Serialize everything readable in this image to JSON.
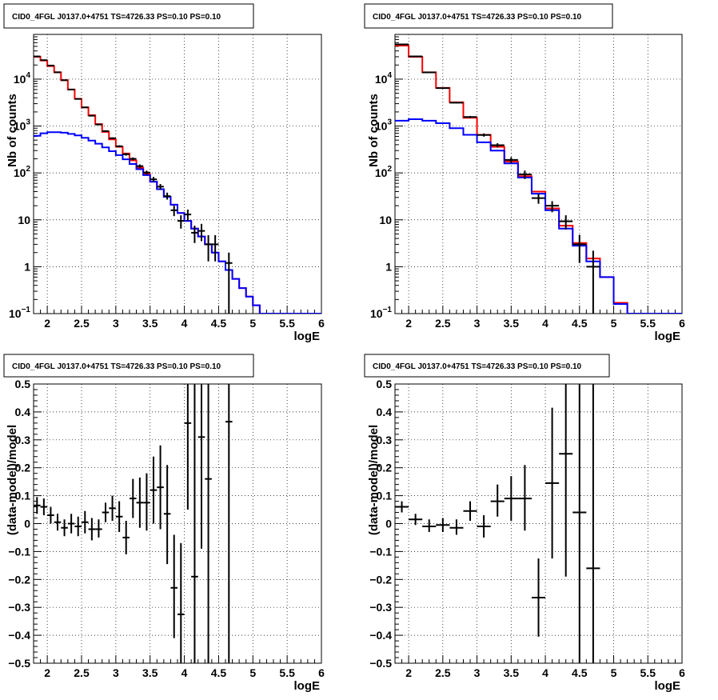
{
  "chart_data": [
    {
      "type": "line",
      "title": "CID0_4FGL J0137.0+4751 TS=4726.33 PS=0.10 PS=0.10",
      "xlabel": "logE",
      "ylabel": "Nb of counts",
      "xlim": [
        1.8,
        6.0
      ],
      "ylim": [
        0.1,
        90000
      ],
      "yscale": "log",
      "grid": true,
      "x_ticks": [
        "2",
        "2.5",
        "3",
        "3.5",
        "4",
        "4.5",
        "5",
        "5.5",
        "6"
      ],
      "y_ticks": [
        {
          "value": 0.1,
          "label": "10",
          "sup": "−1"
        },
        {
          "value": 1,
          "label": "1",
          "sup": ""
        },
        {
          "value": 10,
          "label": "10",
          "sup": ""
        },
        {
          "value": 100,
          "label": "10",
          "sup": "2"
        },
        {
          "value": 1000,
          "label": "10",
          "sup": "3"
        },
        {
          "value": 10000,
          "label": "10",
          "sup": "4"
        }
      ],
      "bin_width": 0.1,
      "series": [
        {
          "color": "#ff0000",
          "bins": [
            1.8,
            1.9,
            2.0,
            2.1,
            2.2,
            2.3,
            2.4,
            2.5,
            2.6,
            2.7,
            2.8,
            2.9,
            3.0,
            3.1,
            3.2,
            3.3,
            3.4,
            3.5,
            3.6,
            3.7,
            3.8,
            3.9,
            4.0,
            4.1,
            4.2,
            4.3,
            4.4,
            4.5,
            4.6,
            4.7,
            4.8,
            4.9,
            5.0,
            5.1,
            5.2,
            5.3,
            5.4,
            5.5,
            5.6,
            5.7,
            5.8,
            5.9
          ],
          "values": [
            30000,
            25000,
            19000,
            14000,
            9500,
            6000,
            3800,
            2500,
            1700,
            1100,
            750,
            520,
            360,
            260,
            185,
            130,
            95,
            65,
            45,
            31,
            21,
            14,
            9.5,
            6.5,
            4.4,
            3.0,
            2.0,
            1.3,
            0.85,
            0.55,
            0.35,
            0.23,
            0.15,
            0.1,
            0.1,
            0.1,
            0.1,
            0.1,
            0.1,
            0.1,
            0.1,
            0.1
          ]
        },
        {
          "color": "#0000ff",
          "bins": [
            1.8,
            1.9,
            2.0,
            2.1,
            2.2,
            2.3,
            2.4,
            2.5,
            2.6,
            2.7,
            2.8,
            2.9,
            3.0,
            3.1,
            3.2,
            3.3,
            3.4,
            3.5,
            3.6,
            3.7,
            3.8,
            3.9,
            4.0,
            4.1,
            4.2,
            4.3,
            4.4,
            4.5,
            4.6,
            4.7,
            4.8,
            4.9,
            5.0,
            5.1,
            5.2,
            5.3,
            5.4,
            5.5,
            5.6,
            5.7,
            5.8,
            5.9
          ],
          "values": [
            620,
            700,
            740,
            740,
            720,
            680,
            630,
            560,
            490,
            420,
            350,
            290,
            240,
            195,
            155,
            120,
            90,
            65,
            45,
            31,
            21,
            14,
            9.5,
            6.5,
            4.4,
            3.0,
            2.0,
            1.3,
            0.85,
            0.55,
            0.35,
            0.23,
            0.15,
            0.1,
            0.1,
            0.1,
            0.1,
            0.1,
            0.1,
            0.1,
            0.1,
            0.1
          ]
        }
      ],
      "points": [
        {
          "x": 1.85,
          "y": 30500,
          "lo": 30000,
          "hi": 31000
        },
        {
          "x": 1.95,
          "y": 25400,
          "lo": 25000,
          "hi": 25800
        },
        {
          "x": 2.05,
          "y": 19500,
          "lo": 19200,
          "hi": 19800
        },
        {
          "x": 2.15,
          "y": 14000,
          "lo": 13700,
          "hi": 14300
        },
        {
          "x": 2.25,
          "y": 9500,
          "lo": 9300,
          "hi": 9700
        },
        {
          "x": 2.35,
          "y": 6000,
          "lo": 5880,
          "hi": 6120
        },
        {
          "x": 2.45,
          "y": 3780,
          "lo": 3700,
          "hi": 3860
        },
        {
          "x": 2.55,
          "y": 2500,
          "lo": 2440,
          "hi": 2560
        },
        {
          "x": 2.65,
          "y": 1660,
          "lo": 1620,
          "hi": 1700
        },
        {
          "x": 2.75,
          "y": 1080,
          "lo": 1050,
          "hi": 1110
        },
        {
          "x": 2.85,
          "y": 780,
          "lo": 752,
          "hi": 808
        },
        {
          "x": 2.95,
          "y": 550,
          "lo": 527,
          "hi": 573
        },
        {
          "x": 3.05,
          "y": 370,
          "lo": 351,
          "hi": 389
        },
        {
          "x": 3.15,
          "y": 250,
          "lo": 234,
          "hi": 266
        },
        {
          "x": 3.25,
          "y": 200,
          "lo": 186,
          "hi": 214
        },
        {
          "x": 3.35,
          "y": 140,
          "lo": 128,
          "hi": 152
        },
        {
          "x": 3.45,
          "y": 102,
          "lo": 92,
          "hi": 112
        },
        {
          "x": 3.55,
          "y": 73,
          "lo": 65,
          "hi": 82
        },
        {
          "x": 3.65,
          "y": 51,
          "lo": 44,
          "hi": 58
        },
        {
          "x": 3.75,
          "y": 32,
          "lo": 27,
          "hi": 38
        },
        {
          "x": 3.85,
          "y": 16,
          "lo": 12,
          "hi": 20
        },
        {
          "x": 3.95,
          "y": 9.5,
          "lo": 6.5,
          "hi": 12.5
        },
        {
          "x": 4.05,
          "y": 13,
          "lo": 9.5,
          "hi": 16.5
        },
        {
          "x": 4.15,
          "y": 5.3,
          "lo": 3.2,
          "hi": 7.5
        },
        {
          "x": 4.25,
          "y": 5.8,
          "lo": 3.5,
          "hi": 8.2
        },
        {
          "x": 4.35,
          "y": 3.0,
          "lo": 1.3,
          "hi": 4.7
        },
        {
          "x": 4.45,
          "y": 3.0,
          "lo": 1.3,
          "hi": 4.7
        },
        {
          "x": 4.65,
          "y": 1.2,
          "lo": 0.1,
          "hi": 2.0
        }
      ]
    },
    {
      "type": "line",
      "title": "CID0_4FGL J0137.0+4751 TS=4726.33 PS=0.10 PS=0.10",
      "xlabel": "logE",
      "ylabel": "Nb of counts",
      "xlim": [
        1.8,
        6.0
      ],
      "ylim": [
        0.1,
        90000
      ],
      "yscale": "log",
      "grid": true,
      "x_ticks": [
        "2",
        "2.5",
        "3",
        "3.5",
        "4",
        "4.5",
        "5",
        "5.5",
        "6"
      ],
      "y_ticks": [
        {
          "value": 0.1,
          "label": "10",
          "sup": "−1"
        },
        {
          "value": 1,
          "label": "1",
          "sup": ""
        },
        {
          "value": 10,
          "label": "10",
          "sup": ""
        },
        {
          "value": 100,
          "label": "10",
          "sup": "2"
        },
        {
          "value": 1000,
          "label": "10",
          "sup": "3"
        },
        {
          "value": 10000,
          "label": "10",
          "sup": "4"
        }
      ],
      "bin_width": 0.2,
      "series": [
        {
          "color": "#ff0000",
          "bins": [
            1.8,
            2.0,
            2.2,
            2.4,
            2.6,
            2.8,
            3.0,
            3.2,
            3.4,
            3.6,
            3.8,
            4.0,
            4.2,
            4.4,
            4.6,
            4.8,
            5.0,
            5.2,
            5.4,
            5.6,
            5.8
          ],
          "values": [
            52000,
            30000,
            14000,
            6500,
            3200,
            1500,
            650,
            360,
            175,
            85,
            40,
            17.5,
            7.5,
            3.2,
            1.5,
            0.6,
            0.17,
            0.1,
            0.1,
            0.1,
            0.1
          ]
        },
        {
          "color": "#0000ff",
          "bins": [
            1.8,
            2.0,
            2.2,
            2.4,
            2.6,
            2.8,
            3.0,
            3.2,
            3.4,
            3.6,
            3.8,
            4.0,
            4.2,
            4.4,
            4.6,
            4.8,
            5.0,
            5.2,
            5.4,
            5.6,
            5.8
          ],
          "values": [
            1300,
            1400,
            1300,
            1150,
            900,
            650,
            450,
            300,
            160,
            80,
            36,
            16,
            6.5,
            2.8,
            1.3,
            0.6,
            0.16,
            0.1,
            0.1,
            0.1,
            0.1
          ]
        }
      ],
      "points": [
        {
          "x": 1.9,
          "y": 55000,
          "lo": 54500,
          "hi": 55500
        },
        {
          "x": 2.1,
          "y": 30500,
          "lo": 30100,
          "hi": 30900
        },
        {
          "x": 2.3,
          "y": 13900,
          "lo": 13650,
          "hi": 14150
        },
        {
          "x": 2.5,
          "y": 6450,
          "lo": 6290,
          "hi": 6610
        },
        {
          "x": 2.7,
          "y": 3150,
          "lo": 3040,
          "hi": 3260
        },
        {
          "x": 2.9,
          "y": 1560,
          "lo": 1480,
          "hi": 1640
        },
        {
          "x": 3.1,
          "y": 645,
          "lo": 595,
          "hi": 695
        },
        {
          "x": 3.3,
          "y": 390,
          "lo": 350,
          "hi": 430
        },
        {
          "x": 3.5,
          "y": 190,
          "lo": 163,
          "hi": 217
        },
        {
          "x": 3.7,
          "y": 93,
          "lo": 74,
          "hi": 112
        },
        {
          "x": 3.9,
          "y": 29,
          "lo": 22,
          "hi": 36
        },
        {
          "x": 4.1,
          "y": 20,
          "lo": 14.5,
          "hi": 25
        },
        {
          "x": 4.3,
          "y": 9.3,
          "lo": 6.2,
          "hi": 12.5
        },
        {
          "x": 4.5,
          "y": 3.0,
          "lo": 1.2,
          "hi": 4.8
        },
        {
          "x": 4.7,
          "y": 1.0,
          "lo": 0.1,
          "hi": 2.2
        }
      ]
    },
    {
      "type": "scatter",
      "title": "CID0_4FGL J0137.0+4751 TS=4726.33 PS=0.10 PS=0.10",
      "xlabel": "logE",
      "ylabel": "(data-model)/model",
      "xlim": [
        1.8,
        6.0
      ],
      "ylim": [
        -0.5,
        0.5
      ],
      "yscale": "linear",
      "grid": true,
      "x_ticks": [
        "2",
        "2.5",
        "3",
        "3.5",
        "4",
        "4.5",
        "5",
        "5.5",
        "6"
      ],
      "y_ticks": [
        {
          "value": -0.5,
          "label": "−0.5",
          "sup": ""
        },
        {
          "value": -0.4,
          "label": "−0.4",
          "sup": ""
        },
        {
          "value": -0.3,
          "label": "−0.3",
          "sup": ""
        },
        {
          "value": -0.2,
          "label": "−0.2",
          "sup": ""
        },
        {
          "value": -0.1,
          "label": "−0.1",
          "sup": ""
        },
        {
          "value": 0,
          "label": "0",
          "sup": ""
        },
        {
          "value": 0.1,
          "label": "0.1",
          "sup": ""
        },
        {
          "value": 0.2,
          "label": "0.2",
          "sup": ""
        },
        {
          "value": 0.3,
          "label": "0.3",
          "sup": ""
        },
        {
          "value": 0.4,
          "label": "0.4",
          "sup": ""
        },
        {
          "value": 0.5,
          "label": "0.5",
          "sup": ""
        }
      ],
      "bin_width": 0.1,
      "points": [
        {
          "x": 1.85,
          "y": 0.065,
          "lo": 0.035,
          "hi": 0.095
        },
        {
          "x": 1.95,
          "y": 0.06,
          "lo": 0.03,
          "hi": 0.09
        },
        {
          "x": 2.05,
          "y": 0.03,
          "lo": 0.0,
          "hi": 0.06
        },
        {
          "x": 2.15,
          "y": 0.005,
          "lo": -0.025,
          "hi": 0.035
        },
        {
          "x": 2.25,
          "y": -0.015,
          "lo": -0.045,
          "hi": 0.015
        },
        {
          "x": 2.35,
          "y": 0.0,
          "lo": -0.035,
          "hi": 0.035
        },
        {
          "x": 2.45,
          "y": -0.01,
          "lo": -0.045,
          "hi": 0.025
        },
        {
          "x": 2.55,
          "y": 0.005,
          "lo": -0.035,
          "hi": 0.045
        },
        {
          "x": 2.65,
          "y": -0.02,
          "lo": -0.06,
          "hi": 0.02
        },
        {
          "x": 2.75,
          "y": -0.02,
          "lo": -0.05,
          "hi": 0.015
        },
        {
          "x": 2.85,
          "y": 0.04,
          "lo": 0.005,
          "hi": 0.075
        },
        {
          "x": 2.95,
          "y": 0.055,
          "lo": 0.01,
          "hi": 0.1
        },
        {
          "x": 3.05,
          "y": 0.025,
          "lo": -0.03,
          "hi": 0.08
        },
        {
          "x": 3.15,
          "y": -0.05,
          "lo": -0.11,
          "hi": 0.01
        },
        {
          "x": 3.25,
          "y": 0.09,
          "lo": 0.02,
          "hi": 0.16
        },
        {
          "x": 3.35,
          "y": 0.075,
          "lo": -0.015,
          "hi": 0.165
        },
        {
          "x": 3.45,
          "y": 0.075,
          "lo": -0.025,
          "hi": 0.18
        },
        {
          "x": 3.55,
          "y": 0.12,
          "lo": 0.0,
          "hi": 0.24
        },
        {
          "x": 3.65,
          "y": 0.13,
          "lo": -0.02,
          "hi": 0.28
        },
        {
          "x": 3.75,
          "y": 0.035,
          "lo": -0.145,
          "hi": 0.21
        },
        {
          "x": 3.85,
          "y": -0.23,
          "lo": -0.41,
          "hi": -0.04
        },
        {
          "x": 3.95,
          "y": -0.325,
          "lo": -0.5,
          "hi": -0.07
        },
        {
          "x": 4.05,
          "y": 0.36,
          "lo": 0.05,
          "hi": 0.5
        },
        {
          "x": 4.15,
          "y": -0.19,
          "lo": -0.5,
          "hi": 0.5
        },
        {
          "x": 4.25,
          "y": 0.31,
          "lo": -0.09,
          "hi": 0.5
        },
        {
          "x": 4.35,
          "y": 0.16,
          "lo": -0.5,
          "hi": 0.5
        },
        {
          "x": 4.65,
          "y": 0.365,
          "lo": -0.5,
          "hi": 0.5
        }
      ]
    },
    {
      "type": "scatter",
      "title": "CID0_4FGL J0137.0+4751 TS=4726.33 PS=0.10 PS=0.10",
      "xlabel": "logE",
      "ylabel": "(data-model)/model",
      "xlim": [
        1.8,
        6.0
      ],
      "ylim": [
        -0.5,
        0.5
      ],
      "yscale": "linear",
      "grid": true,
      "x_ticks": [
        "2",
        "2.5",
        "3",
        "3.5",
        "4",
        "4.5",
        "5",
        "5.5",
        "6"
      ],
      "y_ticks": [
        {
          "value": -0.5,
          "label": "−0.5",
          "sup": ""
        },
        {
          "value": -0.4,
          "label": "−0.4",
          "sup": ""
        },
        {
          "value": -0.3,
          "label": "−0.3",
          "sup": ""
        },
        {
          "value": -0.2,
          "label": "−0.2",
          "sup": ""
        },
        {
          "value": -0.1,
          "label": "−0.1",
          "sup": ""
        },
        {
          "value": 0,
          "label": "0",
          "sup": ""
        },
        {
          "value": 0.1,
          "label": "0.1",
          "sup": ""
        },
        {
          "value": 0.2,
          "label": "0.2",
          "sup": ""
        },
        {
          "value": 0.3,
          "label": "0.3",
          "sup": ""
        },
        {
          "value": 0.4,
          "label": "0.4",
          "sup": ""
        },
        {
          "value": 0.5,
          "label": "0.5",
          "sup": ""
        }
      ],
      "bin_width": 0.2,
      "points": [
        {
          "x": 1.9,
          "y": 0.06,
          "lo": 0.04,
          "hi": 0.08
        },
        {
          "x": 2.1,
          "y": 0.015,
          "lo": -0.005,
          "hi": 0.035
        },
        {
          "x": 2.3,
          "y": -0.01,
          "lo": -0.03,
          "hi": 0.015
        },
        {
          "x": 2.5,
          "y": -0.005,
          "lo": -0.03,
          "hi": 0.02
        },
        {
          "x": 2.7,
          "y": -0.015,
          "lo": -0.04,
          "hi": 0.015
        },
        {
          "x": 2.9,
          "y": 0.045,
          "lo": 0.01,
          "hi": 0.08
        },
        {
          "x": 3.1,
          "y": -0.01,
          "lo": -0.05,
          "hi": 0.03
        },
        {
          "x": 3.3,
          "y": 0.08,
          "lo": 0.025,
          "hi": 0.14
        },
        {
          "x": 3.5,
          "y": 0.09,
          "lo": 0.01,
          "hi": 0.17
        },
        {
          "x": 3.7,
          "y": 0.09,
          "lo": -0.025,
          "hi": 0.21
        },
        {
          "x": 3.9,
          "y": -0.265,
          "lo": -0.405,
          "hi": -0.125
        },
        {
          "x": 4.1,
          "y": 0.145,
          "lo": -0.125,
          "hi": 0.415
        },
        {
          "x": 4.3,
          "y": 0.25,
          "lo": -0.19,
          "hi": 0.5
        },
        {
          "x": 4.5,
          "y": 0.04,
          "lo": -0.5,
          "hi": 0.5
        },
        {
          "x": 4.7,
          "y": -0.16,
          "lo": -0.5,
          "hi": 0.5
        }
      ]
    }
  ]
}
